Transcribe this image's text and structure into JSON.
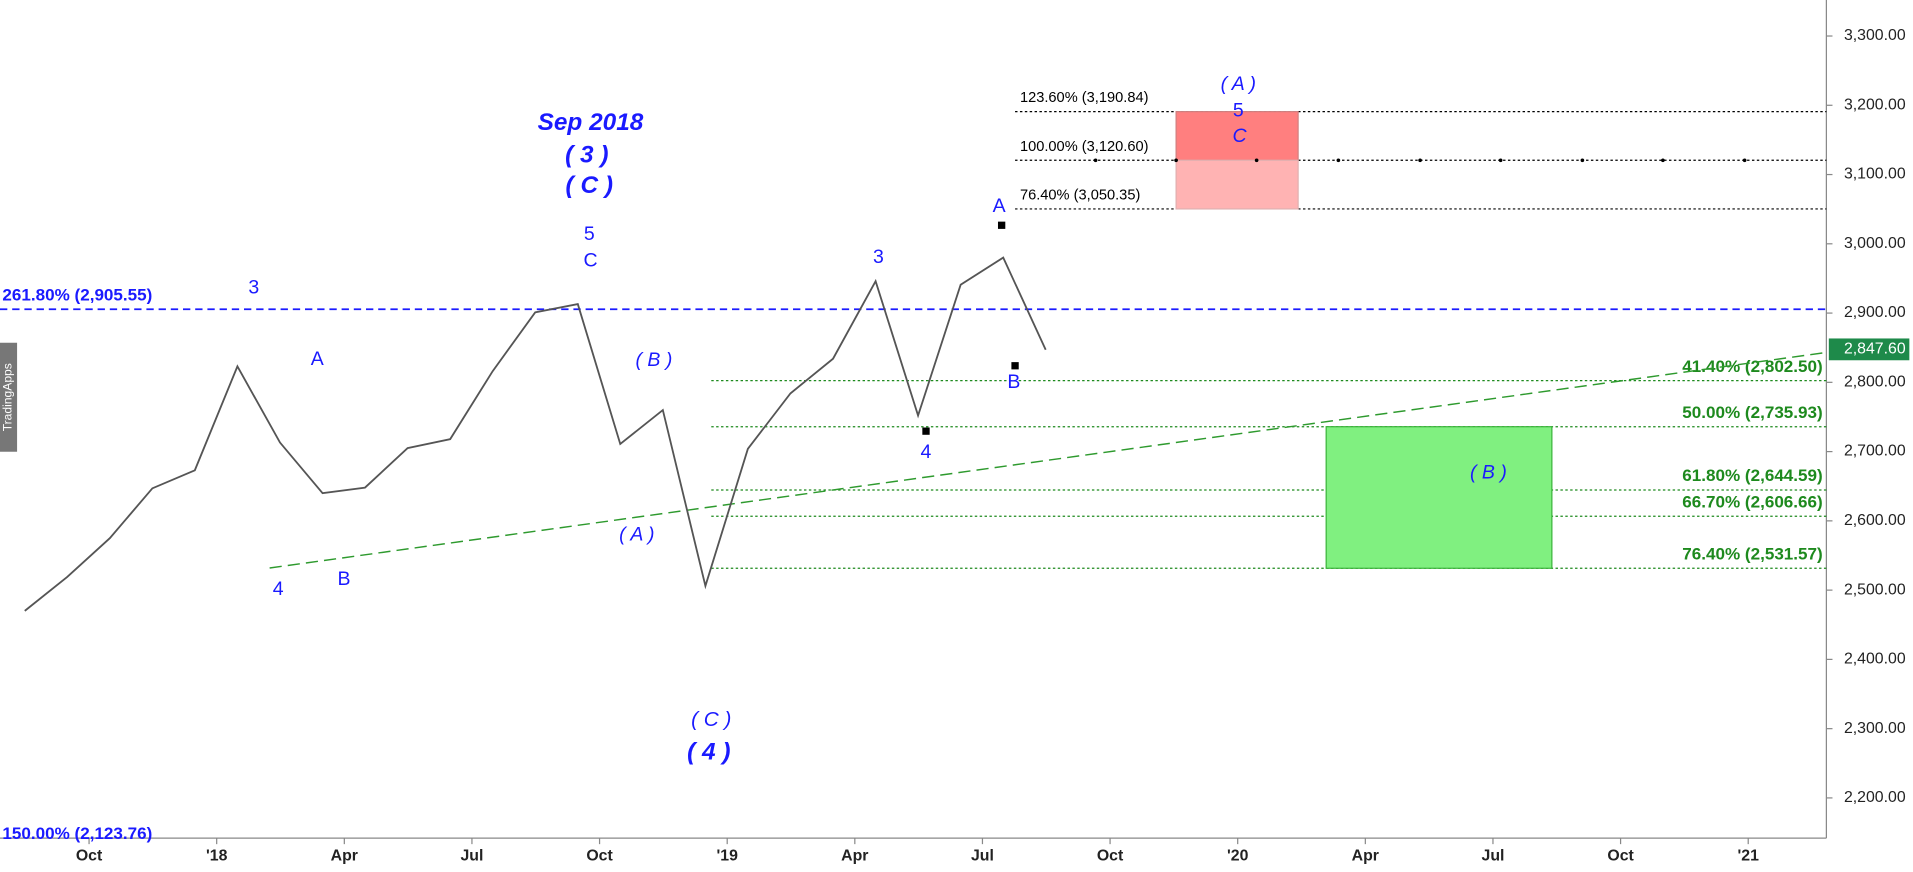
{
  "chart_data": {
    "type": "line",
    "color": "#555555",
    "x": [
      "2017-08",
      "2017-09",
      "2017-10",
      "2017-11",
      "2017-12",
      "2018-01",
      "2018-02",
      "2018-03",
      "2018-04",
      "2018-05",
      "2018-06",
      "2018-07",
      "2018-08",
      "2018-09",
      "2018-10",
      "2018-11",
      "2018-12",
      "2019-01",
      "2019-02",
      "2019-03",
      "2019-04",
      "2019-05",
      "2019-06",
      "2019-07",
      "2019-08"
    ],
    "values": [
      2470,
      2519,
      2575,
      2647,
      2673,
      2823,
      2713,
      2640,
      2648,
      2705,
      2718,
      2816,
      2901,
      2913,
      2711,
      2760,
      2506,
      2704,
      2784,
      2834,
      2946,
      2752,
      2941,
      2980,
      2847
    ],
    "ylim": [
      2142,
      3352
    ],
    "yticks": [
      {
        "value": 2200,
        "label": "2,200.00"
      },
      {
        "value": 2300,
        "label": "2,300.00"
      },
      {
        "value": 2400,
        "label": "2,400.00"
      },
      {
        "value": 2500,
        "label": "2,500.00"
      },
      {
        "value": 2600,
        "label": "2,600.00"
      },
      {
        "value": 2700,
        "label": "2,700.00"
      },
      {
        "value": 2800,
        "label": "2,800.00"
      },
      {
        "value": 2900,
        "label": "2,900.00"
      },
      {
        "value": 3000,
        "label": "3,000.00"
      },
      {
        "value": 3100,
        "label": "3,100.00"
      },
      {
        "value": 3200,
        "label": "3,200.00"
      },
      {
        "value": 3300,
        "label": "3,300.00"
      }
    ],
    "xticks": [
      {
        "value": "2017-10",
        "label": "Oct"
      },
      {
        "value": "2018-01",
        "label": "'18"
      },
      {
        "value": "2018-04",
        "label": "Apr"
      },
      {
        "value": "2018-07",
        "label": "Jul"
      },
      {
        "value": "2018-10",
        "label": "Oct"
      },
      {
        "value": "2019-01",
        "label": "'19"
      },
      {
        "value": "2019-04",
        "label": "Apr"
      },
      {
        "value": "2019-07",
        "label": "Jul"
      },
      {
        "value": "2019-10",
        "label": "Oct"
      },
      {
        "value": "2020-01",
        "label": "'20"
      },
      {
        "value": "2020-04",
        "label": "Apr"
      },
      {
        "value": "2020-07",
        "label": "Jul"
      },
      {
        "value": "2020-10",
        "label": "Oct"
      },
      {
        "value": "2021-01",
        "label": "'21"
      }
    ],
    "levels": [
      {
        "value": 2905.55,
        "label": "261.80% (2,905.55)",
        "color": "#1a1aff"
      },
      {
        "value": 2123.76,
        "label": "150.00% (2,123.76)",
        "color": "#1a1aff"
      },
      {
        "value": 3190.84,
        "label": "123.60% (3,190.84)",
        "color": "#000000"
      },
      {
        "value": 3120.6,
        "label": "100.00% (3,120.60)",
        "color": "#000000"
      },
      {
        "value": 3050.35,
        "label": "76.40% (3,050.35)",
        "color": "#000000"
      },
      {
        "value": 2802.5,
        "label": "41.40% (2,802.50)",
        "color": "#1e8a1e"
      },
      {
        "value": 2735.93,
        "label": "50.00% (2,735.93)",
        "color": "#1e8a1e"
      },
      {
        "value": 2644.59,
        "label": "61.80% (2,644.59)",
        "color": "#1e8a1e"
      },
      {
        "value": 2606.66,
        "label": "66.70% (2,606.66)",
        "color": "#1e8a1e"
      },
      {
        "value": 2531.57,
        "label": "76.40% (2,531.57)",
        "color": "#1e8a1e"
      }
    ],
    "last_price": {
      "value": 2847.6,
      "label": "2,847.60"
    },
    "annotations": [
      "3",
      "4",
      "A",
      "B",
      "Sep 2018",
      "( 3 )",
      "( C )",
      "5",
      "C",
      "( B )",
      "( A )",
      "( C )",
      "( 4 )",
      "3",
      "4",
      "A",
      "B",
      "( A )",
      "5",
      "C",
      "( B )"
    ],
    "side_tab": "TradingApps"
  }
}
